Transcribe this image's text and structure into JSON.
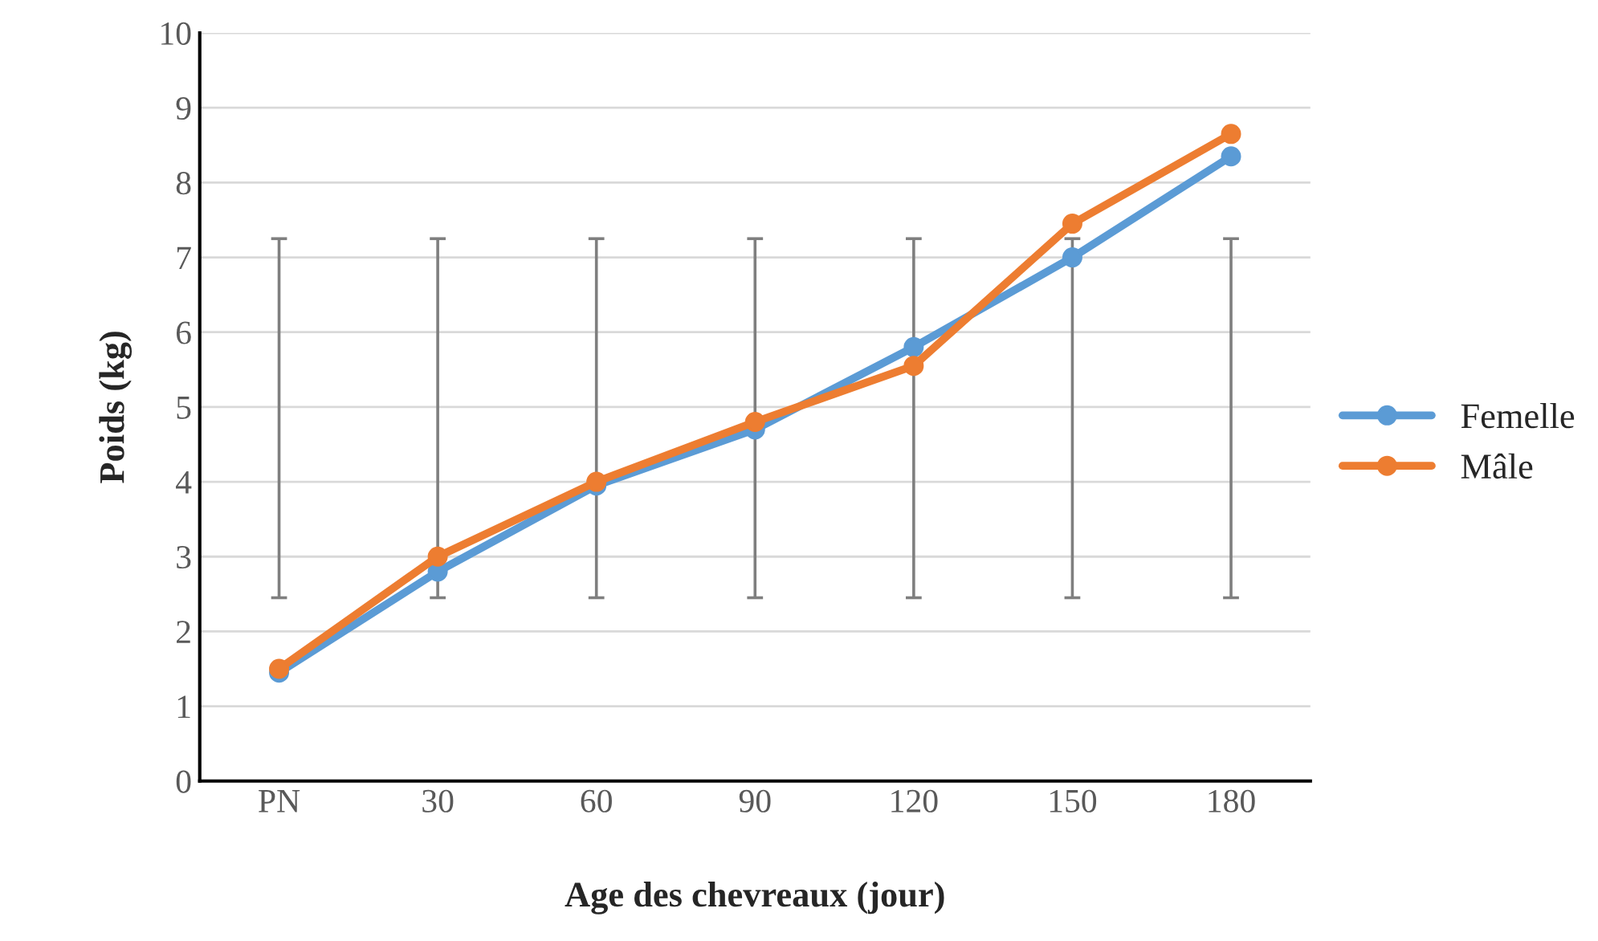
{
  "chart_data": {
    "type": "line",
    "xlabel": "Age des chevreaux (jour)",
    "ylabel": "Poids (kg)",
    "categories": [
      "PN",
      "30",
      "60",
      "90",
      "120",
      "150",
      "180"
    ],
    "series": [
      {
        "name": "Femelle",
        "color": "#5b9bd5",
        "values": [
          1.45,
          2.8,
          3.95,
          4.7,
          5.8,
          7.0,
          8.35
        ],
        "errors": [
          [
            2.45,
            7.25
          ],
          [
            2.45,
            7.25
          ],
          [
            2.45,
            7.25
          ],
          [
            2.45,
            7.25
          ],
          [
            2.45,
            7.25
          ],
          [
            2.45,
            7.25
          ],
          [
            2.45,
            7.25
          ]
        ]
      },
      {
        "name": "Mâle",
        "color": "#ed7d31",
        "values": [
          1.5,
          3.0,
          4.0,
          4.8,
          5.55,
          7.45,
          8.65
        ]
      }
    ],
    "ylim": [
      0,
      10
    ],
    "yticks": [
      0,
      1,
      2,
      3,
      4,
      5,
      6,
      7,
      8,
      9,
      10
    ],
    "grid": "y",
    "legend": "right",
    "marker": "circle",
    "line_style": "solid"
  }
}
